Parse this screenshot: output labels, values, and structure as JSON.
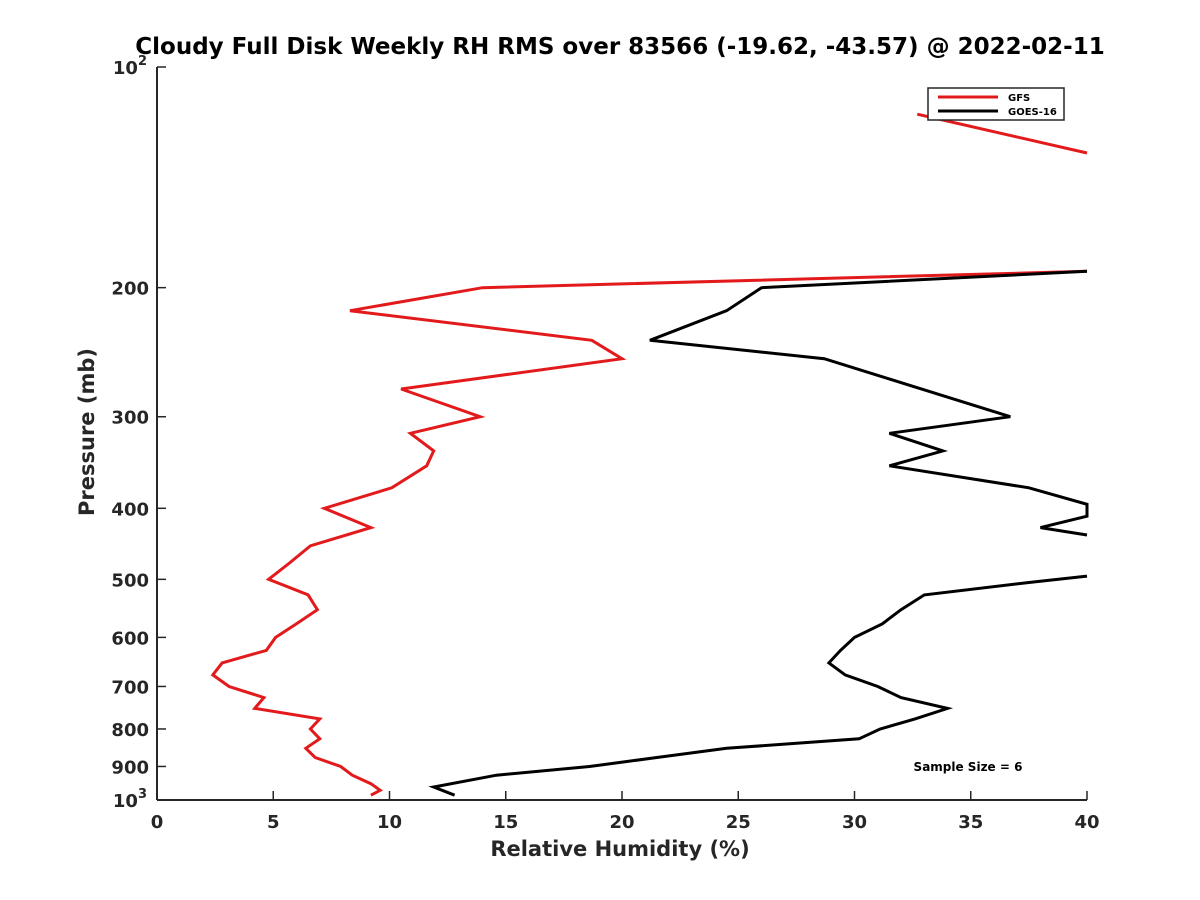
{
  "chart_data": {
    "type": "line",
    "title": "Cloudy Full Disk Weekly RH RMS over 83566 (-19.62, -43.57) @ 2022-02-11",
    "xlabel": "Relative Humidity (%)",
    "ylabel": "Pressure (mb)",
    "xlim": [
      0,
      40
    ],
    "ylim": [
      100,
      1000
    ],
    "y_scale": "log",
    "y_reversed": true,
    "grid": false,
    "legend_position": "top-right",
    "x_ticks": [
      0,
      5,
      10,
      15,
      20,
      25,
      30,
      35,
      40
    ],
    "x_tick_labels": [
      "0",
      "5",
      "10",
      "15",
      "20",
      "25",
      "30",
      "35",
      "40"
    ],
    "y_ticks": [
      200,
      300,
      400,
      500,
      600,
      700,
      800,
      900
    ],
    "y_tick_labels": [
      "200",
      "300",
      "400",
      "500",
      "600",
      "700",
      "800",
      "900"
    ],
    "y_end_ticks": [
      {
        "value": 100,
        "base": "10",
        "exp": "2"
      },
      {
        "value": 1000,
        "base": "10",
        "exp": "3"
      }
    ],
    "annotation": "Sample Size = 6",
    "series": [
      {
        "name": "GFS",
        "color": "#e31a1c",
        "points": [
          [
            32.7,
            116
          ],
          [
            40.0,
            131
          ],
          [
            null,
            null
          ],
          [
            40.0,
            190
          ],
          [
            14.0,
            200
          ],
          [
            8.3,
            215
          ],
          [
            18.7,
            236
          ],
          [
            20.0,
            250
          ],
          [
            10.5,
            275
          ],
          [
            13.9,
            300
          ],
          [
            10.9,
            316
          ],
          [
            11.9,
            334
          ],
          [
            11.6,
            350
          ],
          [
            10.1,
            375
          ],
          [
            7.2,
            400
          ],
          [
            9.2,
            425
          ],
          [
            6.6,
            450
          ],
          [
            5.7,
            475
          ],
          [
            4.8,
            500
          ],
          [
            6.5,
            525
          ],
          [
            6.9,
            550
          ],
          [
            6.0,
            575
          ],
          [
            5.1,
            600
          ],
          [
            4.7,
            625
          ],
          [
            2.8,
            650
          ],
          [
            2.4,
            675
          ],
          [
            3.1,
            700
          ],
          [
            4.6,
            725
          ],
          [
            4.2,
            750
          ],
          [
            7.0,
            775
          ],
          [
            6.6,
            800
          ],
          [
            7.0,
            825
          ],
          [
            6.4,
            850
          ],
          [
            6.8,
            875
          ],
          [
            7.9,
            900
          ],
          [
            8.4,
            925
          ],
          [
            9.2,
            950
          ],
          [
            9.6,
            970
          ],
          [
            9.2,
            985
          ]
        ]
      },
      {
        "name": "GOES-16",
        "color": "#000000",
        "points": [
          [
            40.0,
            190
          ],
          [
            26.0,
            200
          ],
          [
            24.5,
            215
          ],
          [
            21.2,
            236
          ],
          [
            28.7,
            250
          ],
          [
            36.7,
            300
          ],
          [
            31.5,
            316
          ],
          [
            33.8,
            334
          ],
          [
            31.5,
            350
          ],
          [
            37.5,
            375
          ],
          [
            40.0,
            395
          ],
          [
            40.0,
            410
          ],
          [
            38.0,
            425
          ],
          [
            40.0,
            435
          ],
          [
            null,
            null
          ],
          [
            40.0,
            495
          ],
          [
            37.5,
            505
          ],
          [
            33.0,
            525
          ],
          [
            32.0,
            550
          ],
          [
            31.2,
            575
          ],
          [
            30.0,
            600
          ],
          [
            29.4,
            625
          ],
          [
            28.9,
            650
          ],
          [
            29.6,
            675
          ],
          [
            31.0,
            700
          ],
          [
            32.0,
            725
          ],
          [
            34.0,
            750
          ],
          [
            32.6,
            775
          ],
          [
            31.1,
            800
          ],
          [
            30.2,
            825
          ],
          [
            24.5,
            850
          ],
          [
            21.5,
            875
          ],
          [
            18.6,
            900
          ],
          [
            14.6,
            925
          ],
          [
            11.9,
            960
          ],
          [
            12.8,
            985
          ]
        ]
      }
    ]
  }
}
